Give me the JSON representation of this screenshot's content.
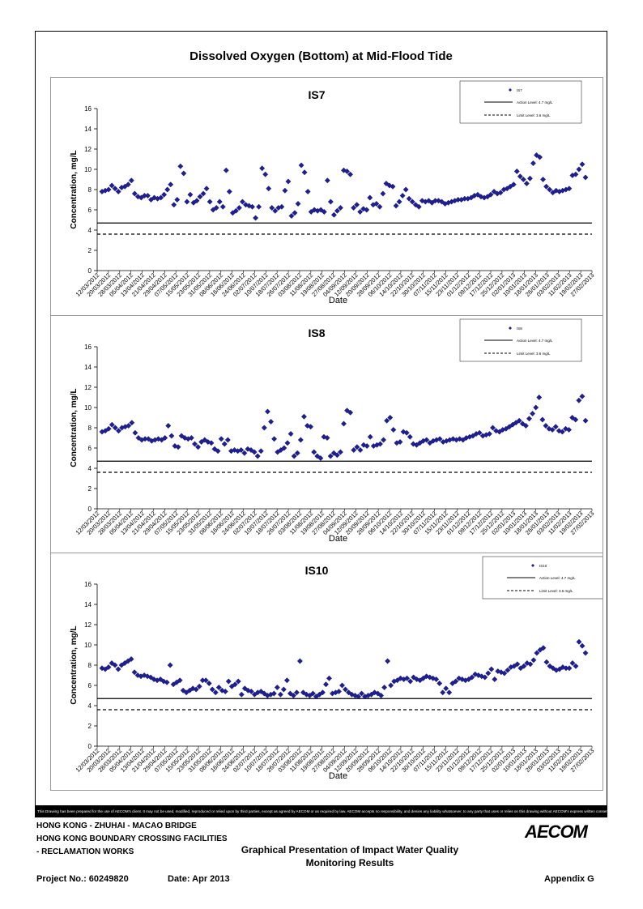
{
  "page": {
    "title": "Dissolved Oxygen (Bottom) at Mid-Flood Tide",
    "disclaimer": "This Drawing has been prepared for the use of AECOM's client. It may not be used, modified, reproduced or relied upon by third parties, except as agreed by AECOM or as required by law. AECOM accepts no responsibility, and denies any liability whatsoever, to any party that uses or relies on this drawing without AECOM's express written consent.",
    "footer": {
      "line1": "HONG KONG - ZHUHAI - MACAO BRIDGE",
      "line2": "HONG KONG BOUNDARY CROSSING FACILITIES",
      "line3": "- RECLAMATION WORKS",
      "center1": "Graphical Presentation of Impact Water Quality",
      "center2": "Monitoring Results",
      "logo": "AECOM",
      "project": "Project No.: 60249820",
      "date": "Date: Apr 2013",
      "appendix": "Appendix G"
    }
  },
  "chart_data": [
    {
      "type": "scatter",
      "title": "IS7",
      "xlabel": "Date",
      "ylabel": "Concentration, mg/L",
      "ylim": [
        0,
        16
      ],
      "yticks": [
        0,
        2,
        4,
        6,
        8,
        10,
        12,
        14,
        16
      ],
      "x_tick_labels": [
        "12/03/2012",
        "20/03/2012",
        "28/03/2012",
        "05/04/2012",
        "13/04/2012",
        "21/04/2012",
        "29/04/2012",
        "07/05/2012",
        "15/05/2012",
        "23/05/2012",
        "31/05/2012",
        "08/06/2012",
        "16/06/2012",
        "24/06/2012",
        "02/07/2012",
        "10/07/2012",
        "18/07/2012",
        "26/07/2012",
        "03/08/2012",
        "11/08/2012",
        "19/08/2012",
        "27/08/2012",
        "04/09/2012",
        "12/09/2012",
        "20/09/2012",
        "28/09/2012",
        "06/10/2012",
        "14/10/2012",
        "22/10/2012",
        "30/10/2012",
        "07/11/2012",
        "15/11/2012",
        "23/11/2012",
        "01/12/2012",
        "09/12/2012",
        "17/12/2012",
        "25/12/2012",
        "02/01/2013",
        "10/01/2013",
        "18/01/2013",
        "26/01/2013",
        "03/02/2013",
        "11/02/2013",
        "19/02/2013",
        "27/02/2013"
      ],
      "action_level": 4.7,
      "limit_level": 3.6,
      "legend": [
        "IS7",
        "Action Level: 4.7 mg/L",
        "Limit Level: 3.6 mg/L"
      ],
      "legend_position": "top-right",
      "values": [
        7.8,
        7.9,
        8.0,
        8.4,
        8.1,
        7.8,
        8.2,
        8.3,
        8.5,
        8.9,
        7.6,
        7.3,
        7.2,
        7.4,
        7.4,
        7.0,
        7.2,
        7.1,
        7.2,
        7.5,
        8.0,
        8.5,
        6.5,
        7.0,
        10.3,
        9.6,
        6.8,
        7.5,
        6.7,
        6.9,
        7.3,
        7.6,
        8.1,
        6.8,
        6.0,
        6.2,
        6.8,
        6.3,
        9.9,
        7.8,
        5.7,
        5.9,
        6.2,
        6.8,
        6.5,
        6.4,
        6.3,
        5.2,
        6.3,
        10.1,
        9.5,
        8.1,
        6.2,
        5.9,
        6.2,
        6.3,
        7.9,
        8.8,
        5.4,
        5.7,
        6.6,
        10.4,
        9.7,
        7.8,
        5.8,
        6.0,
        5.9,
        6.0,
        5.8,
        8.9,
        6.8,
        5.5,
        5.9,
        6.2,
        9.9,
        9.8,
        9.5,
        6.2,
        6.5,
        5.8,
        6.1,
        6.0,
        7.2,
        6.5,
        6.6,
        6.3,
        7.6,
        8.6,
        8.4,
        8.3,
        6.4,
        6.8,
        7.4,
        8.0,
        7.1,
        6.8,
        6.5,
        6.3,
        6.9,
        6.8,
        6.9,
        6.7,
        6.9,
        6.9,
        6.8,
        6.6,
        6.7,
        6.8,
        6.9,
        7.0,
        7.0,
        7.1,
        7.1,
        7.2,
        7.4,
        7.5,
        7.3,
        7.2,
        7.3,
        7.5,
        7.8,
        7.6,
        7.7,
        8.0,
        8.1,
        8.3,
        8.5,
        9.8,
        9.3,
        9.0,
        8.6,
        9.1,
        10.6,
        11.4,
        11.2,
        9.0,
        8.3,
        8.0,
        7.7,
        7.9,
        7.8,
        7.9,
        8.0,
        8.1,
        9.4,
        9.5,
        10.0,
        10.5,
        9.2
      ]
    },
    {
      "type": "scatter",
      "title": "IS8",
      "xlabel": "Date",
      "ylabel": "Concentration, mg/L",
      "ylim": [
        0,
        16
      ],
      "yticks": [
        0,
        2,
        4,
        6,
        8,
        10,
        12,
        14,
        16
      ],
      "x_tick_labels": [
        "12/03/2012",
        "20/03/2012",
        "28/03/2012",
        "05/04/2012",
        "13/04/2012",
        "21/04/2012",
        "29/04/2012",
        "07/05/2012",
        "15/05/2012",
        "23/05/2012",
        "31/05/2012",
        "08/06/2012",
        "16/06/2012",
        "24/06/2012",
        "02/07/2012",
        "10/07/2012",
        "18/07/2012",
        "26/07/2012",
        "03/08/2012",
        "11/08/2012",
        "19/08/2012",
        "27/08/2012",
        "04/09/2012",
        "12/09/2012",
        "20/09/2012",
        "28/09/2012",
        "06/10/2012",
        "14/10/2012",
        "22/10/2012",
        "30/10/2012",
        "07/11/2012",
        "15/11/2012",
        "23/11/2012",
        "01/12/2012",
        "09/12/2012",
        "17/12/2012",
        "25/12/2012",
        "02/01/2013",
        "10/01/2013",
        "18/01/2013",
        "26/01/2013",
        "03/02/2013",
        "11/02/2013",
        "19/02/2013",
        "27/02/2013"
      ],
      "action_level": 4.7,
      "limit_level": 3.6,
      "legend": [
        "IS8",
        "Action Level: 4.7 mg/L",
        "Limit Level: 3.6 mg/L"
      ],
      "legend_position": "top-right",
      "values": [
        7.6,
        7.7,
        7.9,
        8.3,
        8.0,
        7.7,
        8.0,
        8.1,
        8.2,
        8.5,
        7.5,
        7.0,
        6.8,
        6.9,
        6.9,
        6.7,
        6.8,
        6.9,
        6.8,
        7.0,
        8.2,
        7.2,
        6.2,
        6.1,
        7.2,
        7.0,
        6.9,
        7.0,
        6.4,
        6.1,
        6.6,
        6.8,
        6.6,
        6.5,
        5.9,
        5.7,
        6.9,
        6.4,
        6.8,
        5.7,
        5.8,
        5.7,
        5.8,
        5.5,
        5.9,
        5.8,
        5.6,
        5.2,
        5.7,
        8.0,
        9.6,
        8.6,
        6.9,
        5.6,
        5.8,
        6.0,
        6.5,
        7.4,
        5.2,
        5.5,
        6.8,
        9.1,
        8.2,
        8.1,
        5.6,
        5.2,
        5.0,
        7.1,
        7.0,
        5.2,
        5.5,
        5.3,
        5.6,
        8.4,
        9.7,
        9.5,
        5.8,
        6.1,
        5.8,
        6.3,
        6.2,
        7.1,
        6.2,
        6.3,
        6.4,
        6.8,
        8.7,
        9.0,
        7.8,
        6.5,
        6.6,
        7.6,
        7.5,
        7.1,
        6.4,
        6.3,
        6.5,
        6.7,
        6.8,
        6.5,
        6.7,
        6.8,
        6.9,
        6.6,
        6.7,
        6.8,
        6.9,
        6.8,
        6.9,
        6.8,
        7.0,
        7.1,
        7.2,
        7.4,
        7.5,
        7.2,
        7.3,
        7.4,
        8.0,
        7.7,
        7.6,
        7.8,
        7.9,
        8.1,
        8.3,
        8.5,
        8.7,
        8.4,
        8.2,
        8.9,
        9.4,
        10.0,
        11.0,
        8.8,
        8.2,
        7.9,
        7.8,
        8.1,
        7.7,
        7.6,
        7.9,
        7.8,
        9.0,
        8.8,
        10.7,
        11.1,
        8.7
      ]
    },
    {
      "type": "scatter",
      "title": "IS10",
      "xlabel": "Date",
      "ylabel": "Concentration, mg/L",
      "ylim": [
        0,
        16
      ],
      "yticks": [
        0,
        2,
        4,
        6,
        8,
        10,
        12,
        14,
        16
      ],
      "x_tick_labels": [
        "12/03/2012",
        "20/03/2012",
        "28/03/2012",
        "05/04/2012",
        "13/04/2012",
        "21/04/2012",
        "29/04/2012",
        "07/05/2012",
        "15/05/2012",
        "23/05/2012",
        "31/05/2012",
        "08/06/2012",
        "16/06/2012",
        "24/06/2012",
        "02/07/2012",
        "10/07/2012",
        "18/07/2012",
        "26/07/2012",
        "03/08/2012",
        "11/08/2012",
        "19/08/2012",
        "27/08/2012",
        "04/09/2012",
        "12/09/2012",
        "20/09/2012",
        "28/09/2012",
        "06/10/2012",
        "14/10/2012",
        "22/10/2012",
        "30/10/2012",
        "07/11/2012",
        "15/11/2012",
        "23/11/2012",
        "01/12/2012",
        "09/12/2012",
        "17/12/2012",
        "25/12/2012",
        "02/01/2013",
        "10/01/2013",
        "18/01/2013",
        "26/01/2013",
        "03/02/2013",
        "11/02/2013",
        "19/02/2013",
        "27/02/2013"
      ],
      "action_level": 4.7,
      "limit_level": 3.6,
      "legend": [
        "IS10",
        "Action Level: 4.7 mg/L",
        "Limit Level: 3.6 mg/L"
      ],
      "legend_position": "top-right",
      "values": [
        7.7,
        7.6,
        7.8,
        8.2,
        8.0,
        7.6,
        8.0,
        8.2,
        8.4,
        8.6,
        7.3,
        7.0,
        6.9,
        7.0,
        6.9,
        6.8,
        6.6,
        6.5,
        6.6,
        6.4,
        6.3,
        8.0,
        6.1,
        6.3,
        6.5,
        5.5,
        5.3,
        5.5,
        5.7,
        5.6,
        5.9,
        6.5,
        6.5,
        6.2,
        5.6,
        5.3,
        5.8,
        5.5,
        5.4,
        6.4,
        5.9,
        6.1,
        6.4,
        5.1,
        5.7,
        5.5,
        5.4,
        5.1,
        5.3,
        5.4,
        5.2,
        5.0,
        5.1,
        5.2,
        5.8,
        5.1,
        5.6,
        6.5,
        5.2,
        5.0,
        5.3,
        8.4,
        5.3,
        5.1,
        5.0,
        5.2,
        4.9,
        5.1,
        5.3,
        6.1,
        6.7,
        5.2,
        5.3,
        5.4,
        6.0,
        5.6,
        5.3,
        5.1,
        5.0,
        4.9,
        5.2,
        4.9,
        5.0,
        5.1,
        5.3,
        5.2,
        5.0,
        5.8,
        8.4,
        6.0,
        6.4,
        6.5,
        6.7,
        6.6,
        6.7,
        6.4,
        6.8,
        6.6,
        6.5,
        6.7,
        6.9,
        6.8,
        6.7,
        6.6,
        6.2,
        5.3,
        5.7,
        5.3,
        6.2,
        6.4,
        6.7,
        6.6,
        6.5,
        6.6,
        6.8,
        7.1,
        7.0,
        6.9,
        6.8,
        7.2,
        7.6,
        6.6,
        7.4,
        7.3,
        7.2,
        7.5,
        7.8,
        7.9,
        8.1,
        7.7,
        7.9,
        8.2,
        8.1,
        8.5,
        9.2,
        9.5,
        9.7,
        8.3,
        7.9,
        7.7,
        7.5,
        7.6,
        7.8,
        7.7,
        7.7,
        8.2,
        7.9,
        10.3,
        9.9,
        9.2
      ]
    }
  ]
}
